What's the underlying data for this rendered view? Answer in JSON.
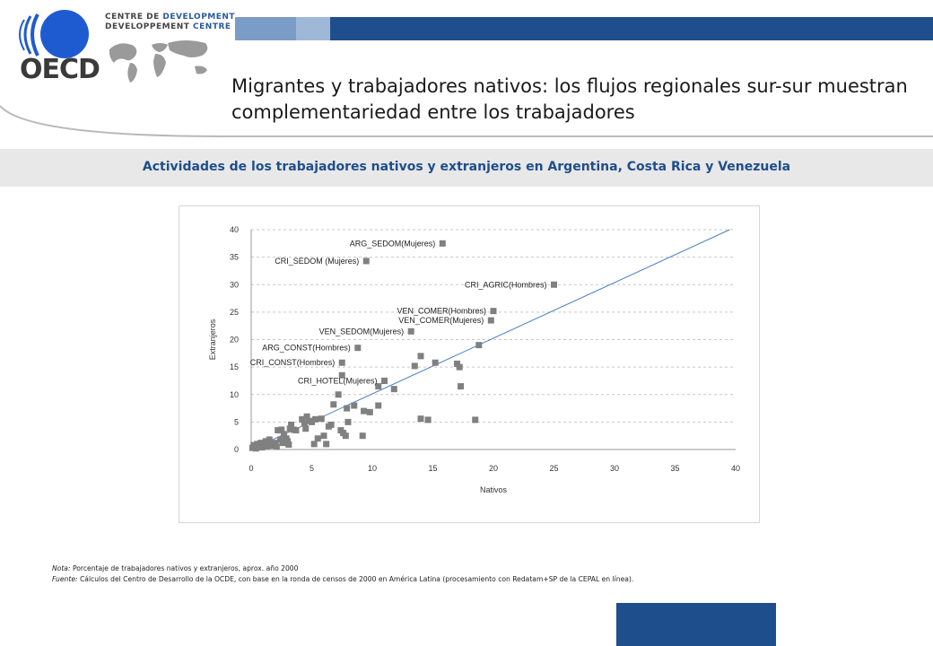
{
  "header": {
    "logo_text": "OECD",
    "devcentre_line1_a": "CENTRE DE ",
    "devcentre_line1_b": "DEVELOPMENT",
    "devcentre_line2_a": "DEVELOPPEMENT ",
    "devcentre_line2_b": "CENTRE",
    "title": "Migrantes y trabajadores nativos: los flujos regionales sur-sur muestran complementariedad entre los trabajadores"
  },
  "subtitle": "Actividades de los trabajadores nativos y extranjeros en Argentina, Costa Rica y Venezuela",
  "notes": {
    "nota_label": "Nota:",
    "nota_text": " Porcentaje de trabajadores nativos y extranjeros, aprox. año 2000",
    "fuente_label": "Fuente:",
    "fuente_text": " Cálculos del Centro de Desarrollo de la OCDE, con base en la ronda de censos de 2000 en América Latina (procesamiento con Redatam+SP de la CEPAL en línea)."
  },
  "colors": {
    "brand_blue": "#1f4e8c",
    "marker": "#808080",
    "trendline": "#4a7fc0"
  },
  "chart_data": {
    "type": "scatter",
    "title": "",
    "xlabel": "Nativos",
    "ylabel": "Extranjeros",
    "xlim": [
      0,
      40
    ],
    "ylim": [
      0,
      40
    ],
    "xticks": [
      "0",
      "5",
      "10",
      "15",
      "20",
      "25",
      "30",
      "35",
      "40"
    ],
    "yticks": [
      "0",
      "5",
      "10",
      "15",
      "20",
      "25",
      "30",
      "35",
      "40"
    ],
    "grid": "horizontal dashed",
    "trendline": [
      [
        0,
        0
      ],
      [
        39.5,
        40
      ]
    ],
    "labeled_points": [
      {
        "label": "ARG_SEDOM(Mujeres)",
        "x": 15.8,
        "y": 37.5
      },
      {
        "label": "CRI_SEDOM (Mujeres)",
        "x": 9.5,
        "y": 34.3
      },
      {
        "label": "CRI_AGRIC(Hombres)",
        "x": 25.0,
        "y": 30.0
      },
      {
        "label": "VEN_COMER(Hombres)",
        "x": 20.0,
        "y": 25.2
      },
      {
        "label": "VEN_COMER(Mujeres)",
        "x": 19.8,
        "y": 23.5
      },
      {
        "label": "VEN_SEDOM(Mujeres)",
        "x": 13.2,
        "y": 21.5
      },
      {
        "label": "ARG_CONST(Hombres)",
        "x": 8.8,
        "y": 18.5
      },
      {
        "label": "CRI_CONST(Hombres)",
        "x": 7.5,
        "y": 15.8
      },
      {
        "label": "CRI_HOTEL(Mujeres)",
        "x": 11.0,
        "y": 12.5
      }
    ],
    "points": [
      [
        0.1,
        0.3
      ],
      [
        0.2,
        0.8
      ],
      [
        0.4,
        0.2
      ],
      [
        0.5,
        1.0
      ],
      [
        0.6,
        0.5
      ],
      [
        0.8,
        1.2
      ],
      [
        0.9,
        0.4
      ],
      [
        1.0,
        0.8
      ],
      [
        1.2,
        1.5
      ],
      [
        1.3,
        0.6
      ],
      [
        1.5,
        1.8
      ],
      [
        1.6,
        1.0
      ],
      [
        1.8,
        0.7
      ],
      [
        2.0,
        1.2
      ],
      [
        2.1,
        0.5
      ],
      [
        2.2,
        3.5
      ],
      [
        2.4,
        1.8
      ],
      [
        2.5,
        3.6
      ],
      [
        2.6,
        1.2
      ],
      [
        2.7,
        2.8
      ],
      [
        2.9,
        2.0
      ],
      [
        3.0,
        1.5
      ],
      [
        3.1,
        0.9
      ],
      [
        3.2,
        3.8
      ],
      [
        3.3,
        4.5
      ],
      [
        3.5,
        3.6
      ],
      [
        3.7,
        3.5
      ],
      [
        4.2,
        5.5
      ],
      [
        4.4,
        4.8
      ],
      [
        4.5,
        3.8
      ],
      [
        4.6,
        6.0
      ],
      [
        4.8,
        5.2
      ],
      [
        5.0,
        5.0
      ],
      [
        5.2,
        1.0
      ],
      [
        5.3,
        5.5
      ],
      [
        5.5,
        2.0
      ],
      [
        5.8,
        5.6
      ],
      [
        6.0,
        2.5
      ],
      [
        6.2,
        1.0
      ],
      [
        6.4,
        4.2
      ],
      [
        6.6,
        4.5
      ],
      [
        6.8,
        8.2
      ],
      [
        7.2,
        10.0
      ],
      [
        7.4,
        3.5
      ],
      [
        7.5,
        13.5
      ],
      [
        7.6,
        3.0
      ],
      [
        7.8,
        2.5
      ],
      [
        7.9,
        7.5
      ],
      [
        8.0,
        5.0
      ],
      [
        8.5,
        8.0
      ],
      [
        9.2,
        2.5
      ],
      [
        9.3,
        7.0
      ],
      [
        9.8,
        6.8
      ],
      [
        10.5,
        8.0
      ],
      [
        10.5,
        11.5
      ],
      [
        11.0,
        12.5
      ],
      [
        11.8,
        11.0
      ],
      [
        13.5,
        15.2
      ],
      [
        14.0,
        17.0
      ],
      [
        14.0,
        5.6
      ],
      [
        14.6,
        5.4
      ],
      [
        15.2,
        15.8
      ],
      [
        17.0,
        15.6
      ],
      [
        17.2,
        15.0
      ],
      [
        17.3,
        11.5
      ],
      [
        18.5,
        5.4
      ],
      [
        18.8,
        19.0
      ]
    ]
  }
}
